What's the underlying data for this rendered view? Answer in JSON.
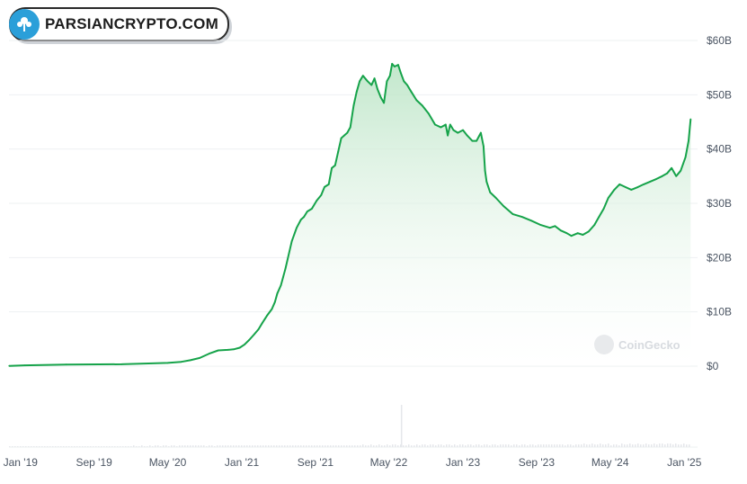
{
  "watermark_logo": {
    "text": "PARSIANCRYPTO.COM",
    "icon": "tree-icon"
  },
  "chart_watermark": {
    "text": "CoinGecko",
    "icon": "coingecko-icon"
  },
  "colors": {
    "line": "#16a34a",
    "fill_top": "#bfe6c9",
    "fill_bottom": "#ffffff",
    "volume": "#e5e7eb",
    "grid": "#eef0f2"
  },
  "chart_data": {
    "type": "area",
    "title": "",
    "xlabel": "",
    "ylabel": "",
    "ylim": [
      0,
      60
    ],
    "y_unit": "billion USD",
    "y_tick_labels": [
      "$0",
      "$10B",
      "$20B",
      "$30B",
      "$40B",
      "$50B",
      "$60B"
    ],
    "y_tick_values": [
      0,
      10,
      20,
      30,
      40,
      50,
      60
    ],
    "x_range": [
      "2018-11-24",
      "2025-01-24"
    ],
    "x_tick_labels": [
      "Jan '19",
      "Sep '19",
      "May '20",
      "Jan '21",
      "Sep '21",
      "May '22",
      "Jan '23",
      "Sep '23",
      "May '24",
      "Jan '25"
    ],
    "x_tick_dates": [
      "2019-01-01",
      "2019-09-01",
      "2020-05-01",
      "2021-01-01",
      "2021-09-01",
      "2022-05-01",
      "2023-01-01",
      "2023-09-01",
      "2024-05-01",
      "2025-01-01"
    ],
    "grid": true,
    "legend": "none",
    "series": [
      {
        "x": [
          "2018-11-25",
          "2019-01-15",
          "2019-06-01",
          "2019-12-01",
          "2020-05-01",
          "2020-06-15",
          "2020-07-15",
          "2020-08-15",
          "2020-09-15",
          "2020-10-15",
          "2020-11-15",
          "2020-12-05",
          "2020-12-25",
          "2021-01-10",
          "2021-01-25",
          "2021-02-10",
          "2021-02-25",
          "2021-03-10",
          "2021-03-25",
          "2021-04-10",
          "2021-04-20",
          "2021-04-28",
          "2021-05-10",
          "2021-05-25",
          "2021-06-15",
          "2021-07-01",
          "2021-07-15",
          "2021-07-25",
          "2021-08-05",
          "2021-08-20",
          "2021-09-05",
          "2021-09-20",
          "2021-10-01",
          "2021-10-15",
          "2021-10-25",
          "2021-11-05",
          "2021-11-15",
          "2021-11-25",
          "2021-12-05",
          "2021-12-15",
          "2021-12-25",
          "2022-01-05",
          "2022-01-15",
          "2022-01-20",
          "2022-01-25",
          "2022-02-05",
          "2022-02-20",
          "2022-03-05",
          "2022-03-15",
          "2022-03-25",
          "2022-04-05",
          "2022-04-15",
          "2022-04-25",
          "2022-05-05",
          "2022-05-12",
          "2022-05-20",
          "2022-06-01",
          "2022-06-10",
          "2022-06-20",
          "2022-07-01",
          "2022-07-15",
          "2022-08-01",
          "2022-08-20",
          "2022-09-10",
          "2022-10-01",
          "2022-10-20",
          "2022-11-05",
          "2022-11-12",
          "2022-11-20",
          "2022-12-01",
          "2022-12-15",
          "2023-01-01",
          "2023-01-15",
          "2023-02-01",
          "2023-02-15",
          "2023-03-01",
          "2023-03-10",
          "2023-03-15",
          "2023-03-20",
          "2023-04-01",
          "2023-04-20",
          "2023-05-15",
          "2023-06-15",
          "2023-07-15",
          "2023-08-15",
          "2023-09-15",
          "2023-10-15",
          "2023-11-01",
          "2023-11-20",
          "2023-12-10",
          "2023-12-25",
          "2024-01-15",
          "2024-02-01",
          "2024-02-20",
          "2024-03-10",
          "2024-03-25",
          "2024-04-10",
          "2024-04-25",
          "2024-05-15",
          "2024-06-01",
          "2024-06-20",
          "2024-07-10",
          "2024-08-01",
          "2024-08-20",
          "2024-09-10",
          "2024-10-01",
          "2024-10-20",
          "2024-11-05",
          "2024-11-20",
          "2024-12-05",
          "2024-12-20",
          "2025-01-05",
          "2025-01-15",
          "2025-01-22"
        ],
        "y": [
          0.05,
          0.15,
          0.3,
          0.35,
          0.6,
          0.8,
          1.1,
          1.5,
          2.3,
          2.9,
          3.0,
          3.1,
          3.4,
          4.0,
          4.8,
          5.8,
          6.8,
          8.0,
          9.3,
          10.5,
          11.8,
          13.4,
          14.9,
          18.0,
          23.0,
          25.5,
          27.0,
          27.5,
          28.5,
          29.0,
          30.5,
          31.5,
          33.0,
          33.5,
          36.5,
          37.0,
          39.5,
          42.0,
          42.5,
          43.0,
          44.0,
          48.0,
          50.5,
          51.5,
          52.5,
          53.5,
          52.5,
          51.8,
          53.0,
          51.0,
          49.5,
          48.5,
          52.5,
          53.5,
          55.7,
          55.2,
          55.5,
          54.0,
          52.5,
          51.8,
          50.5,
          49.0,
          48.0,
          46.5,
          44.5,
          44.0,
          44.5,
          42.5,
          44.5,
          43.5,
          43.0,
          43.5,
          42.5,
          41.5,
          41.5,
          43.0,
          40.5,
          36.0,
          34.0,
          32.0,
          31.0,
          29.5,
          28.0,
          27.5,
          26.8,
          26.0,
          25.5,
          25.8,
          25.0,
          24.5,
          24.0,
          24.5,
          24.2,
          24.8,
          26.0,
          27.5,
          29.0,
          31.0,
          32.5,
          33.5,
          33.0,
          32.5,
          33.0,
          33.5,
          34.0,
          34.5,
          35.0,
          35.5,
          36.5,
          35.0,
          36.0,
          38.5,
          41.5,
          45.5
        ]
      }
    ]
  }
}
